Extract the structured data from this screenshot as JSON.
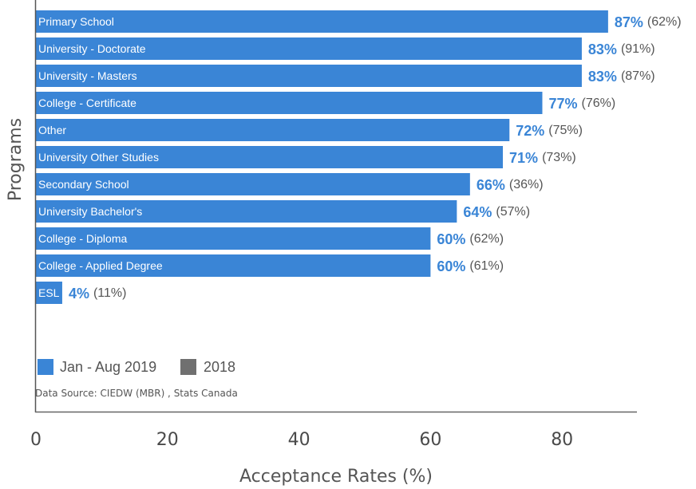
{
  "chart_data": {
    "type": "bar",
    "orientation": "horizontal",
    "categories": [
      "Primary School",
      "University - Doctorate",
      "University - Masters",
      "College - Certificate",
      "Other",
      "University Other Studies",
      "Secondary School",
      "University Bachelor's",
      "College - Diploma",
      "College - Applied Degree",
      "ESL"
    ],
    "series": [
      {
        "name": "Jan - Aug 2019",
        "values": [
          87,
          83,
          83,
          77,
          72,
          71,
          66,
          64,
          60,
          60,
          4
        ],
        "labels": [
          "87%",
          "83%",
          "83%",
          "77%",
          "72%",
          "71%",
          "66%",
          "64%",
          "60%",
          "60%",
          "4%"
        ],
        "color": "#3a85d6"
      },
      {
        "name": "2018",
        "values": [
          62,
          91,
          87,
          76,
          75,
          73,
          36,
          57,
          62,
          61,
          11
        ],
        "labels": [
          "(62%)",
          "(91%)",
          "(87%)",
          "(76%)",
          "(75%)",
          "(73%)",
          "(36%)",
          "(57%)",
          "(62%)",
          "(61%)",
          "(11%)"
        ],
        "color": "#707070"
      }
    ],
    "xlabel": "Acceptance Rates (%)",
    "ylabel": "Programs",
    "xlim": [
      0,
      92
    ],
    "xticks": [
      "0",
      "20",
      "40",
      "60",
      "80"
    ],
    "xtick_values": [
      0,
      20,
      40,
      60,
      80
    ],
    "grid": false,
    "legend_position": "bottom-left",
    "annotation": "Data Source: CIEDW (MBR) , Stats Canada"
  }
}
